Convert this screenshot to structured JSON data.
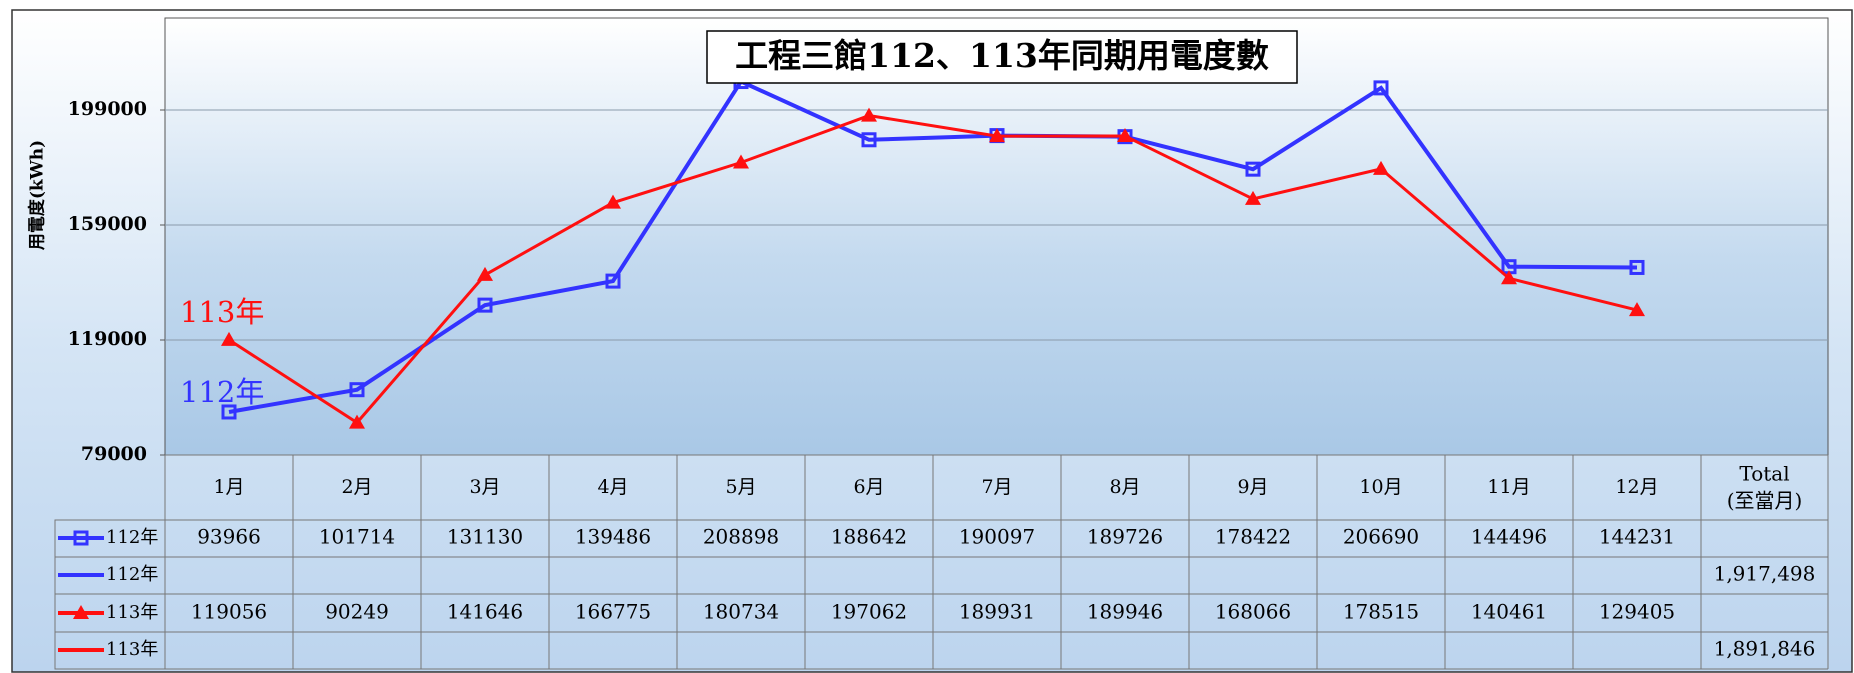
{
  "chart_data": {
    "type": "line",
    "title": "工程三館112、113年同期用電度數",
    "y_label": "用電度(kWh)",
    "categories": [
      "1月",
      "2月",
      "3月",
      "4月",
      "5月",
      "6月",
      "7月",
      "8月",
      "9月",
      "10月",
      "11月",
      "12月"
    ],
    "total_header": [
      "Total",
      "(至當月)"
    ],
    "ylim": [
      79000,
      231000
    ],
    "yticks": [
      79000,
      119000,
      159000,
      199000
    ],
    "grid": true,
    "series": [
      {
        "name": "112年",
        "color": "#3333ff",
        "marker": "square",
        "values": [
          93966,
          101714,
          131130,
          139486,
          208898,
          188642,
          190097,
          189726,
          178422,
          206690,
          144496,
          144231
        ],
        "total": 1917498,
        "total_label": "1,917,498"
      },
      {
        "name": "113年",
        "color": "#ff1010",
        "marker": "triangle",
        "values": [
          119056,
          90249,
          141646,
          166775,
          180734,
          197062,
          189931,
          189946,
          168066,
          178515,
          140461,
          129405
        ],
        "total": 1891846,
        "total_label": "1,891,846"
      }
    ]
  }
}
